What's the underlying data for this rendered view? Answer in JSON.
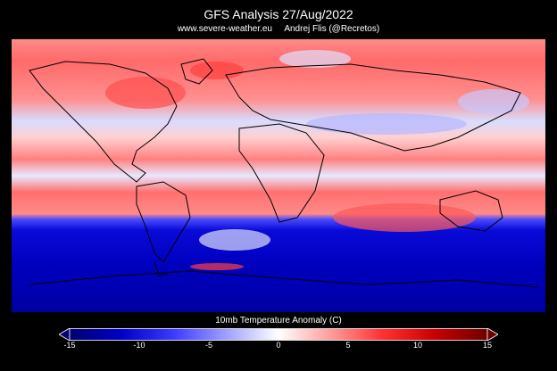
{
  "header": {
    "title": "GFS Analysis 27/Aug/2022",
    "source_line": "www.severe-weather.eu     Andrej Flis (@Recretos)"
  },
  "map": {
    "projection": "equirectangular world",
    "field": "temperature anomaly",
    "colors": {
      "background": "#000000",
      "cold": "#0000b4",
      "warm": "#e60000",
      "neutral": "#ffffff",
      "coastlines": "#000000"
    }
  },
  "legend": {
    "label": "10mb Temperature Anomaly (C)",
    "ticks": [
      "-15",
      "-10",
      "-5",
      "0",
      "5",
      "10",
      "15"
    ],
    "tick_values": [
      -15,
      -10,
      -5,
      0,
      5,
      10,
      15
    ],
    "range": [
      -15,
      15
    ],
    "gradient": [
      "#00006e",
      "#0000c8",
      "#3c3cff",
      "#a0a0ff",
      "#ffffff",
      "#ff9c9c",
      "#ff3030",
      "#c80000",
      "#6e0000"
    ]
  }
}
